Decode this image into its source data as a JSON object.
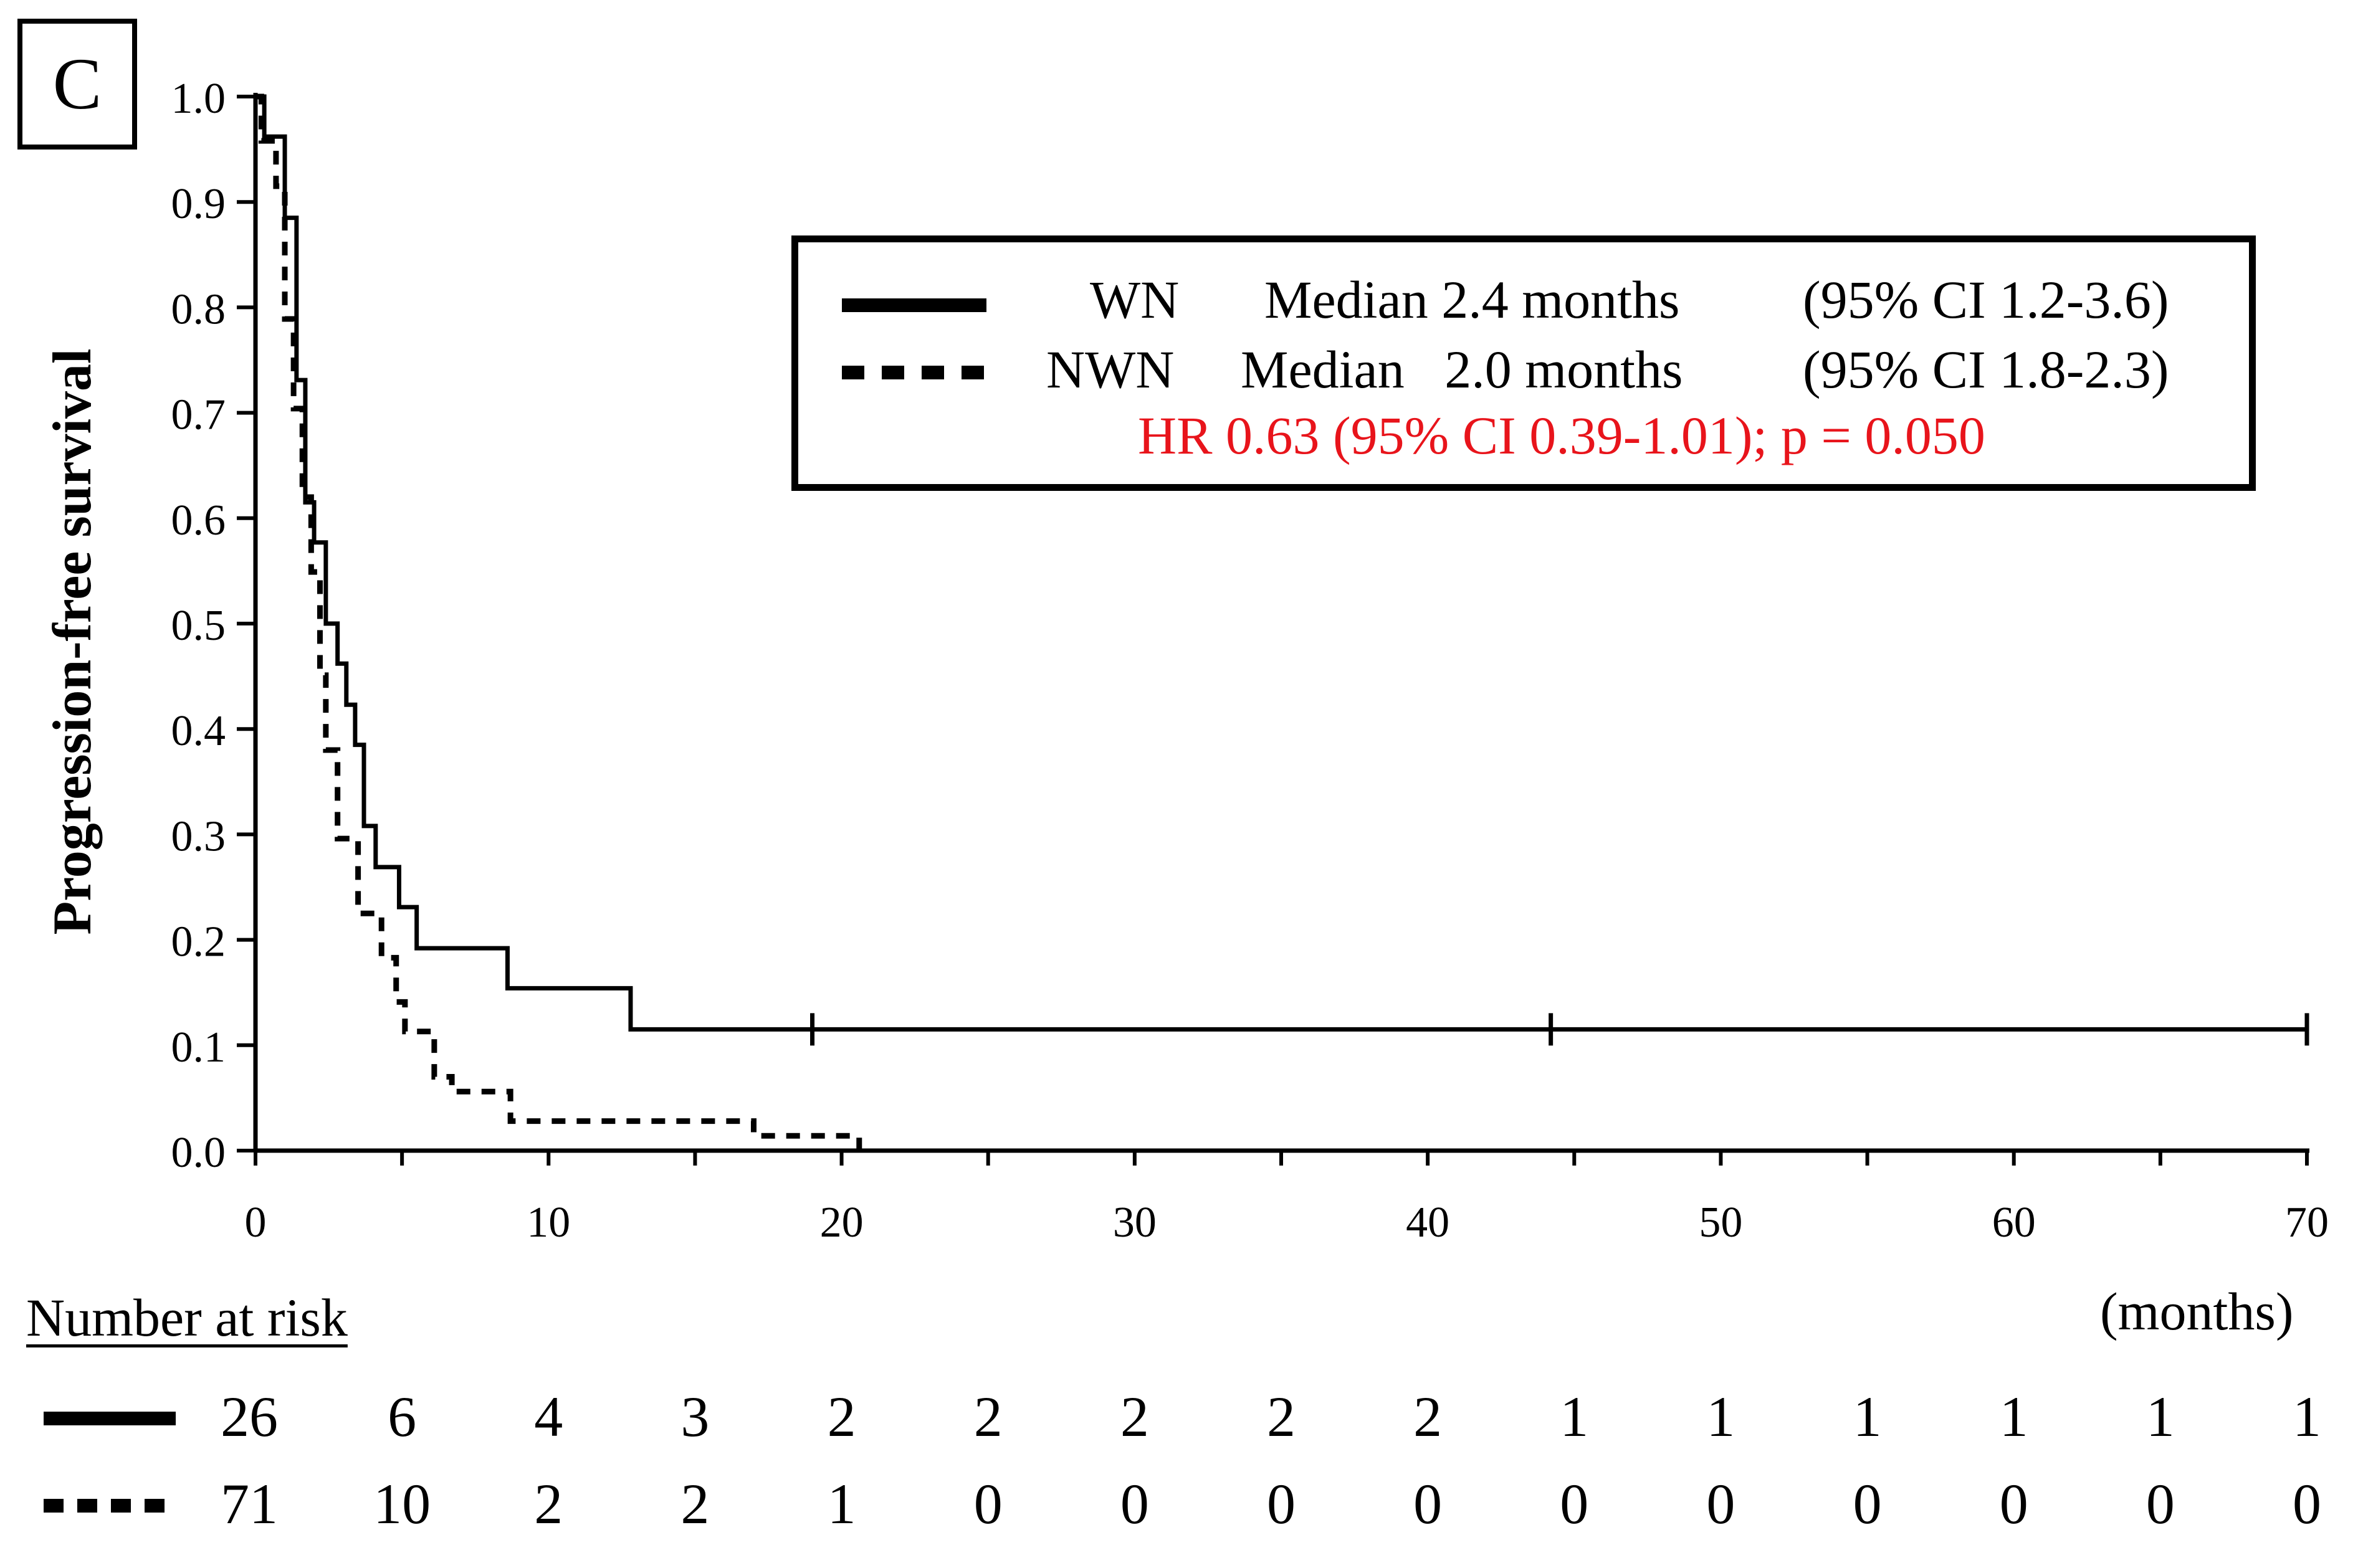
{
  "panel_label": "C",
  "legend": {
    "entries": [
      {
        "group": "WN",
        "median_text": "Median 2.4 months",
        "ci_text": "(95% CI 1.2-3.6)",
        "line_style": "solid"
      },
      {
        "group": "NWN",
        "median_text": "Median   2.0 months",
        "ci_text": "(95% CI 1.8-2.3)",
        "line_style": "dashed"
      }
    ],
    "hr_text": "HR 0.63 (95% CI 0.39-1.01); p = 0.050",
    "hr_color": "#e8141b"
  },
  "risk_table": {
    "title": "Number at risk",
    "units_label": "(months)",
    "rows": [
      {
        "group": "WN",
        "line_style": "solid",
        "values": [
          "26",
          "6",
          "4",
          "3",
          "2",
          "2",
          "2",
          "2",
          "2",
          "1",
          "1",
          "1",
          "1",
          "1",
          "1"
        ]
      },
      {
        "group": "NWN",
        "line_style": "dashed",
        "values": [
          "71",
          "10",
          "2",
          "2",
          "1",
          "0",
          "0",
          "0",
          "0",
          "0",
          "0",
          "0",
          "0",
          "0",
          "0"
        ]
      }
    ]
  },
  "chart_data": {
    "type": "line",
    "subtype": "kaplan-meier step",
    "ylabel": "Progression-free survival",
    "xlabel": "(months)",
    "xlim": [
      0,
      70
    ],
    "ylim": [
      0,
      1.0
    ],
    "x_ticks": [
      "0",
      "10",
      "20",
      "30",
      "40",
      "50",
      "60",
      "70"
    ],
    "x_tick_values": [
      0,
      10,
      20,
      30,
      40,
      50,
      60,
      70
    ],
    "x_minor_step": 5,
    "y_ticks": [
      "0.0",
      "0.1",
      "0.2",
      "0.3",
      "0.4",
      "0.5",
      "0.6",
      "0.7",
      "0.8",
      "0.9",
      "1.0"
    ],
    "y_tick_values": [
      0,
      0.1,
      0.2,
      0.3,
      0.4,
      0.5,
      0.6,
      0.7,
      0.8,
      0.9,
      1.0
    ],
    "series": [
      {
        "name": "WN",
        "style": "solid",
        "points": [
          [
            0,
            1.0
          ],
          [
            0.3,
            0.962
          ],
          [
            1.0,
            0.885
          ],
          [
            1.4,
            0.731
          ],
          [
            1.7,
            0.615
          ],
          [
            2.0,
            0.577
          ],
          [
            2.4,
            0.5
          ],
          [
            2.8,
            0.462
          ],
          [
            3.1,
            0.423
          ],
          [
            3.4,
            0.385
          ],
          [
            3.7,
            0.308
          ],
          [
            4.1,
            0.269
          ],
          [
            4.9,
            0.231
          ],
          [
            5.5,
            0.192
          ],
          [
            8.6,
            0.154
          ],
          [
            12.8,
            0.115
          ],
          [
            70,
            0.115
          ]
        ],
        "censored": [
          19.0,
          44.2,
          70.0
        ]
      },
      {
        "name": "NWN",
        "style": "dashed",
        "points": [
          [
            0,
            1.0
          ],
          [
            0.2,
            0.958
          ],
          [
            0.7,
            0.915
          ],
          [
            1.0,
            0.789
          ],
          [
            1.3,
            0.704
          ],
          [
            1.6,
            0.62
          ],
          [
            1.9,
            0.549
          ],
          [
            2.2,
            0.451
          ],
          [
            2.4,
            0.38
          ],
          [
            2.8,
            0.296
          ],
          [
            3.5,
            0.225
          ],
          [
            4.3,
            0.183
          ],
          [
            4.8,
            0.141
          ],
          [
            5.1,
            0.113
          ],
          [
            6.1,
            0.07
          ],
          [
            6.7,
            0.056
          ],
          [
            8.7,
            0.028
          ],
          [
            17.0,
            0.014
          ],
          [
            20.6,
            0.0
          ]
        ],
        "censored": []
      }
    ]
  }
}
